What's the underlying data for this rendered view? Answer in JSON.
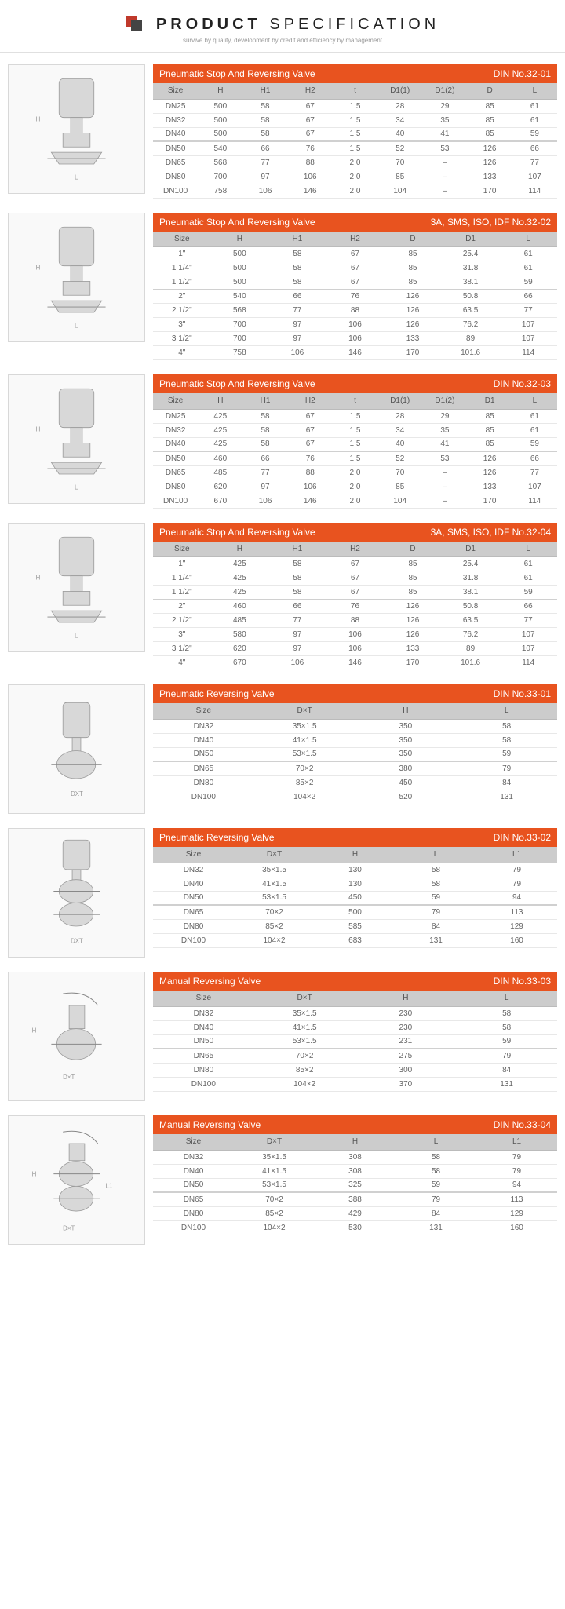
{
  "header": {
    "title_bold": "PRODUCT",
    "title_thin": " SPECIFICATION",
    "subtitle": "survive by quality, development by credit and efficiency by management"
  },
  "colors": {
    "accent": "#e8531f",
    "header_bg": "#cccccc",
    "rule": "#d0d0d0",
    "row_border": "#e8e8e8",
    "text": "#666666",
    "logo_red": "#c0392b",
    "logo_dark": "#444444"
  },
  "sections": [
    {
      "title": "Pneumatic Stop And Reversing Valve",
      "right": "DIN No.32-01",
      "diagram": "valve_tall",
      "columns": [
        "Size",
        "H",
        "H1",
        "H2",
        "t",
        "D1(1)",
        "D1(2)",
        "D",
        "L"
      ],
      "sep_after": 3,
      "rows": [
        [
          "DN25",
          "500",
          "58",
          "67",
          "1.5",
          "28",
          "29",
          "85",
          "61"
        ],
        [
          "DN32",
          "500",
          "58",
          "67",
          "1.5",
          "34",
          "35",
          "85",
          "61"
        ],
        [
          "DN40",
          "500",
          "58",
          "67",
          "1.5",
          "40",
          "41",
          "85",
          "59"
        ],
        [
          "DN50",
          "540",
          "66",
          "76",
          "1.5",
          "52",
          "53",
          "126",
          "66"
        ],
        [
          "DN65",
          "568",
          "77",
          "88",
          "2.0",
          "70",
          "–",
          "126",
          "77"
        ],
        [
          "DN80",
          "700",
          "97",
          "106",
          "2.0",
          "85",
          "–",
          "133",
          "107"
        ],
        [
          "DN100",
          "758",
          "106",
          "146",
          "2.0",
          "104",
          "–",
          "170",
          "114"
        ]
      ]
    },
    {
      "title": "Pneumatic Stop And Reversing Valve",
      "right": "3A, SMS, ISO, IDF No.32-02",
      "diagram": "valve_tall",
      "columns": [
        "Size",
        "H",
        "H1",
        "H2",
        "D",
        "D1",
        "L"
      ],
      "sep_after": 3,
      "rows": [
        [
          "1\"",
          "500",
          "58",
          "67",
          "85",
          "25.4",
          "61"
        ],
        [
          "1 1/4\"",
          "500",
          "58",
          "67",
          "85",
          "31.8",
          "61"
        ],
        [
          "1 1/2\"",
          "500",
          "58",
          "67",
          "85",
          "38.1",
          "59"
        ],
        [
          "2\"",
          "540",
          "66",
          "76",
          "126",
          "50.8",
          "66"
        ],
        [
          "2 1/2\"",
          "568",
          "77",
          "88",
          "126",
          "63.5",
          "77"
        ],
        [
          "3\"",
          "700",
          "97",
          "106",
          "126",
          "76.2",
          "107"
        ],
        [
          "3 1/2\"",
          "700",
          "97",
          "106",
          "133",
          "89",
          "107"
        ],
        [
          "4\"",
          "758",
          "106",
          "146",
          "170",
          "101.6",
          "114"
        ]
      ]
    },
    {
      "title": "Pneumatic Stop And Reversing Valve",
      "right": "DIN   No.32-03",
      "diagram": "valve_wide",
      "columns": [
        "Size",
        "H",
        "H1",
        "H2",
        "t",
        "D1(1)",
        "D1(2)",
        "D1",
        "L"
      ],
      "sep_after": 3,
      "rows": [
        [
          "DN25",
          "425",
          "58",
          "67",
          "1.5",
          "28",
          "29",
          "85",
          "61"
        ],
        [
          "DN32",
          "425",
          "58",
          "67",
          "1.5",
          "34",
          "35",
          "85",
          "61"
        ],
        [
          "DN40",
          "425",
          "58",
          "67",
          "1.5",
          "40",
          "41",
          "85",
          "59"
        ],
        [
          "DN50",
          "460",
          "66",
          "76",
          "1.5",
          "52",
          "53",
          "126",
          "66"
        ],
        [
          "DN65",
          "485",
          "77",
          "88",
          "2.0",
          "70",
          "–",
          "126",
          "77"
        ],
        [
          "DN80",
          "620",
          "97",
          "106",
          "2.0",
          "85",
          "–",
          "133",
          "107"
        ],
        [
          "DN100",
          "670",
          "106",
          "146",
          "2.0",
          "104",
          "–",
          "170",
          "114"
        ]
      ]
    },
    {
      "title": "Pneumatic Stop And Reversing Valve",
      "right": "3A, SMS, ISO, IDF   No.32-04",
      "diagram": "valve_wide",
      "columns": [
        "Size",
        "H",
        "H1",
        "H2",
        "D",
        "D1",
        "L"
      ],
      "sep_after": 3,
      "rows": [
        [
          "1\"",
          "425",
          "58",
          "67",
          "85",
          "25.4",
          "61"
        ],
        [
          "1 1/4\"",
          "425",
          "58",
          "67",
          "85",
          "31.8",
          "61"
        ],
        [
          "1 1/2\"",
          "425",
          "58",
          "67",
          "85",
          "38.1",
          "59"
        ],
        [
          "2\"",
          "460",
          "66",
          "76",
          "126",
          "50.8",
          "66"
        ],
        [
          "2 1/2\"",
          "485",
          "77",
          "88",
          "126",
          "63.5",
          "77"
        ],
        [
          "3\"",
          "580",
          "97",
          "106",
          "126",
          "76.2",
          "107"
        ],
        [
          "3 1/2\"",
          "620",
          "97",
          "106",
          "133",
          "89",
          "107"
        ],
        [
          "4\"",
          "670",
          "106",
          "146",
          "170",
          "101.6",
          "114"
        ]
      ]
    },
    {
      "title": "Pneumatic Reversing Valve",
      "right": "DIN   No.33-01",
      "diagram": "valve_single",
      "columns": [
        "Size",
        "D×T",
        "H",
        "L"
      ],
      "sep_after": 3,
      "rows": [
        [
          "DN32",
          "35×1.5",
          "350",
          "58"
        ],
        [
          "DN40",
          "41×1.5",
          "350",
          "58"
        ],
        [
          "DN50",
          "53×1.5",
          "350",
          "59"
        ],
        [
          "DN65",
          "70×2",
          "380",
          "79"
        ],
        [
          "DN80",
          "85×2",
          "450",
          "84"
        ],
        [
          "DN100",
          "104×2",
          "520",
          "131"
        ]
      ]
    },
    {
      "title": "Pneumatic Reversing Valve",
      "right": "DIN   No.33-02",
      "diagram": "valve_double",
      "columns": [
        "Size",
        "D×T",
        "H",
        "L",
        "L1"
      ],
      "sep_after": 3,
      "rows": [
        [
          "DN32",
          "35×1.5",
          "130",
          "58",
          "79"
        ],
        [
          "DN40",
          "41×1.5",
          "130",
          "58",
          "79"
        ],
        [
          "DN50",
          "53×1.5",
          "450",
          "59",
          "94"
        ],
        [
          "DN65",
          "70×2",
          "500",
          "79",
          "113"
        ],
        [
          "DN80",
          "85×2",
          "585",
          "84",
          "129"
        ],
        [
          "DN100",
          "104×2",
          "683",
          "131",
          "160"
        ]
      ]
    },
    {
      "title": "Manual Reversing Valve",
      "right": "DIN   No.33-03",
      "diagram": "manual_single",
      "columns": [
        "Size",
        "D×T",
        "H",
        "L"
      ],
      "sep_after": 3,
      "rows": [
        [
          "DN32",
          "35×1.5",
          "230",
          "58"
        ],
        [
          "DN40",
          "41×1.5",
          "230",
          "58"
        ],
        [
          "DN50",
          "53×1.5",
          "231",
          "59"
        ],
        [
          "DN65",
          "70×2",
          "275",
          "79"
        ],
        [
          "DN80",
          "85×2",
          "300",
          "84"
        ],
        [
          "DN100",
          "104×2",
          "370",
          "131"
        ]
      ]
    },
    {
      "title": "Manual Reversing Valve",
      "right": "DIN   No.33-04",
      "diagram": "manual_double",
      "columns": [
        "Size",
        "D×T",
        "H",
        "L",
        "L1"
      ],
      "sep_after": 3,
      "rows": [
        [
          "DN32",
          "35×1.5",
          "308",
          "58",
          "79"
        ],
        [
          "DN40",
          "41×1.5",
          "308",
          "58",
          "79"
        ],
        [
          "DN50",
          "53×1.5",
          "325",
          "59",
          "94"
        ],
        [
          "DN65",
          "70×2",
          "388",
          "79",
          "113"
        ],
        [
          "DN80",
          "85×2",
          "429",
          "84",
          "129"
        ],
        [
          "DN100",
          "104×2",
          "530",
          "131",
          "160"
        ]
      ]
    }
  ]
}
